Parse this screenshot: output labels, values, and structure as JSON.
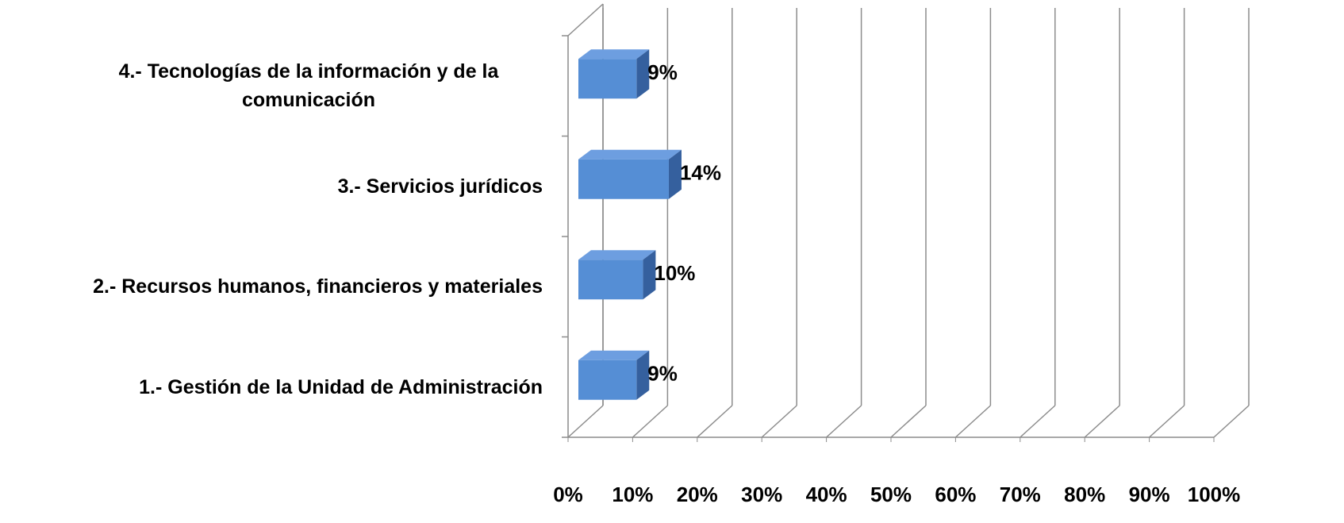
{
  "chart_data": {
    "type": "bar3d-horizontal",
    "categories": [
      "1.- Gestión de la Unidad de Administración",
      "2.- Recursos humanos, financieros y materiales",
      "3.- Servicios jurídicos",
      "4.- Tecnologías de la información y de la comunicación"
    ],
    "values": [
      9,
      10,
      14,
      9
    ],
    "value_labels": [
      "9%",
      "10%",
      "14%",
      "9%"
    ],
    "color": "#558ed5",
    "xlim": [
      0,
      100
    ],
    "xticks": [
      {
        "value": 0,
        "label": "0%"
      },
      {
        "value": 10,
        "label": "10%"
      },
      {
        "value": 20,
        "label": "20%"
      },
      {
        "value": 30,
        "label": "30%"
      },
      {
        "value": 40,
        "label": "40%"
      },
      {
        "value": 50,
        "label": "50%"
      },
      {
        "value": 60,
        "label": "60%"
      },
      {
        "value": 70,
        "label": "70%"
      },
      {
        "value": 80,
        "label": "80%"
      },
      {
        "value": 90,
        "label": "90%"
      },
      {
        "value": 100,
        "label": "100%"
      }
    ],
    "grid": true
  }
}
